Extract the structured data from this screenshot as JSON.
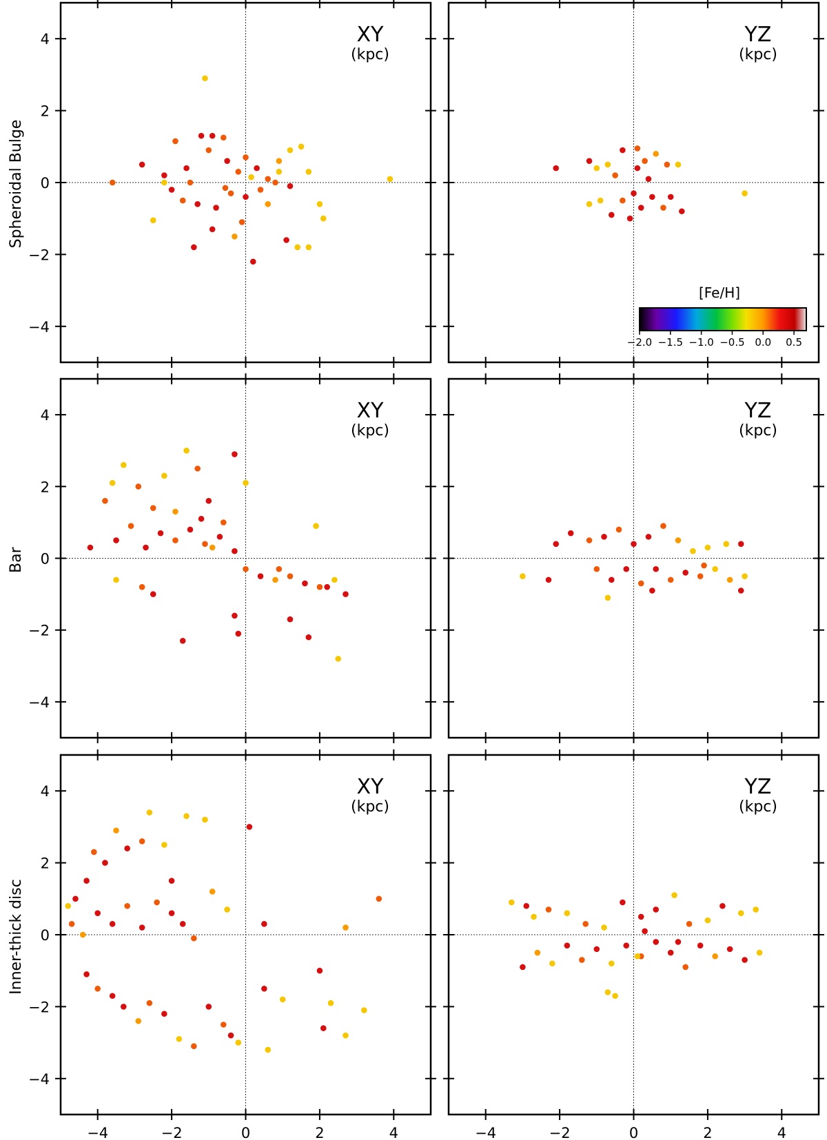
{
  "chart_data": [
    {
      "type": "scatter",
      "panel": "row1-xy",
      "row_label": "Spheroidal Bulge",
      "title": "XY",
      "unit": "(kpc)",
      "xlim": [
        -5,
        5
      ],
      "ylim": [
        -5,
        5
      ],
      "xticks": [
        -4,
        -2,
        0,
        2,
        4
      ],
      "yticks": [
        4,
        2,
        0,
        -2,
        -4
      ],
      "color_by": "[Fe/H]",
      "points": [
        [
          -3.6,
          0.0,
          0.3
        ],
        [
          -2.8,
          0.5,
          0.45
        ],
        [
          -2.2,
          0.2,
          0.45
        ],
        [
          -1.9,
          1.15,
          0.4
        ],
        [
          -1.6,
          0.4,
          0.45
        ],
        [
          -1.5,
          0.0,
          0.3
        ],
        [
          -1.2,
          1.3,
          0.5
        ],
        [
          -1.0,
          0.9,
          0.4
        ],
        [
          -0.9,
          1.3,
          0.45
        ],
        [
          -0.6,
          1.25,
          0.3
        ],
        [
          -0.5,
          0.6,
          0.45
        ],
        [
          -0.2,
          0.3,
          0.35
        ],
        [
          0.0,
          0.7,
          0.3
        ],
        [
          0.3,
          0.4,
          0.45
        ],
        [
          0.6,
          0.1,
          0.35
        ],
        [
          0.9,
          0.6,
          0.15
        ],
        [
          1.2,
          0.9,
          0.05
        ],
        [
          1.5,
          1.0,
          0.1
        ],
        [
          1.7,
          0.3,
          0.05
        ],
        [
          -2.0,
          -0.2,
          0.45
        ],
        [
          -1.7,
          -0.5,
          0.4
        ],
        [
          -1.3,
          -0.6,
          0.45
        ],
        [
          -0.8,
          -0.7,
          0.5
        ],
        [
          -0.4,
          -0.3,
          0.35
        ],
        [
          0.0,
          -0.4,
          0.5
        ],
        [
          0.4,
          -0.2,
          0.3
        ],
        [
          0.8,
          0.0,
          0.4
        ],
        [
          1.2,
          -0.1,
          0.45
        ],
        [
          -1.4,
          -1.8,
          0.45
        ],
        [
          -0.9,
          -1.3,
          0.5
        ],
        [
          -0.3,
          -1.5,
          0.2
        ],
        [
          0.2,
          -2.2,
          0.45
        ],
        [
          1.1,
          -1.6,
          0.45
        ],
        [
          1.4,
          -1.8,
          0.05
        ],
        [
          1.7,
          -1.8,
          0.1
        ],
        [
          2.1,
          -1.0,
          0.0
        ],
        [
          2.0,
          -0.6,
          0.1
        ],
        [
          -2.5,
          -1.05,
          0.05
        ],
        [
          -0.55,
          -0.15,
          0.4
        ],
        [
          0.15,
          0.15,
          0.1
        ],
        [
          -1.1,
          2.9,
          0.0
        ],
        [
          3.9,
          0.1,
          0.0
        ],
        [
          0.6,
          -0.6,
          0.2
        ],
        [
          -2.2,
          0.0,
          0.1
        ],
        [
          0.9,
          0.3,
          0.0
        ],
        [
          -0.1,
          -1.1,
          0.35
        ]
      ]
    },
    {
      "type": "scatter",
      "panel": "row1-yz",
      "title": "YZ",
      "unit": "(kpc)",
      "xlim": [
        -5,
        5
      ],
      "ylim": [
        -5,
        5
      ],
      "xticks": [
        -4,
        -2,
        0,
        2,
        4
      ],
      "yticks": [
        4,
        2,
        0,
        -2,
        -4
      ],
      "color_by": "[Fe/H]",
      "points": [
        [
          -2.1,
          0.4,
          0.45
        ],
        [
          -1.2,
          0.6,
          0.45
        ],
        [
          -1.0,
          0.4,
          0.1
        ],
        [
          -0.7,
          0.5,
          0.05
        ],
        [
          -0.3,
          0.9,
          0.45
        ],
        [
          0.1,
          0.4,
          0.5
        ],
        [
          0.3,
          0.6,
          0.35
        ],
        [
          0.6,
          0.8,
          0.15
        ],
        [
          0.9,
          0.5,
          0.3
        ],
        [
          1.2,
          0.5,
          0.1
        ],
        [
          -1.2,
          -0.6,
          0.1
        ],
        [
          -0.9,
          -0.5,
          0.05
        ],
        [
          -0.6,
          -0.9,
          0.45
        ],
        [
          -0.3,
          -0.5,
          0.35
        ],
        [
          0.0,
          -0.3,
          0.45
        ],
        [
          0.2,
          -0.7,
          0.5
        ],
        [
          0.5,
          -0.4,
          0.45
        ],
        [
          0.8,
          -0.7,
          0.4
        ],
        [
          1.0,
          -0.4,
          0.45
        ],
        [
          1.3,
          -0.8,
          0.45
        ],
        [
          3.0,
          -0.3,
          0.0
        ],
        [
          -0.1,
          -1.0,
          0.45
        ],
        [
          0.1,
          0.95,
          0.4
        ],
        [
          -0.5,
          0.2,
          0.3
        ],
        [
          0.4,
          0.1,
          0.45
        ]
      ]
    },
    {
      "type": "scatter",
      "panel": "row2-xy",
      "row_label": "Bar",
      "title": "XY",
      "unit": "(kpc)",
      "xlim": [
        -5,
        5
      ],
      "ylim": [
        -5,
        5
      ],
      "xticks": [
        -4,
        -2,
        0,
        2,
        4
      ],
      "yticks": [
        4,
        2,
        0,
        -2,
        -4
      ],
      "color_by": "[Fe/H]",
      "points": [
        [
          -4.2,
          0.3,
          0.45
        ],
        [
          -3.8,
          1.6,
          0.4
        ],
        [
          -3.6,
          2.1,
          0.05
        ],
        [
          -3.3,
          2.6,
          0.1
        ],
        [
          -2.9,
          2.0,
          0.3
        ],
        [
          -2.5,
          1.4,
          0.4
        ],
        [
          -2.2,
          2.3,
          0.05
        ],
        [
          -1.9,
          1.3,
          0.2
        ],
        [
          -1.6,
          3.0,
          0.1
        ],
        [
          -1.3,
          2.5,
          0.3
        ],
        [
          -1.0,
          1.6,
          0.45
        ],
        [
          -0.6,
          1.0,
          0.35
        ],
        [
          -0.3,
          2.9,
          0.5
        ],
        [
          0.0,
          2.1,
          0.1
        ],
        [
          -3.5,
          0.5,
          0.45
        ],
        [
          -3.1,
          0.9,
          0.4
        ],
        [
          -2.7,
          0.3,
          0.45
        ],
        [
          -2.3,
          0.7,
          0.5
        ],
        [
          -1.9,
          0.5,
          0.35
        ],
        [
          -1.5,
          0.8,
          0.45
        ],
        [
          -1.1,
          0.4,
          0.3
        ],
        [
          -0.7,
          0.6,
          0.45
        ],
        [
          -0.3,
          0.2,
          0.5
        ],
        [
          0.0,
          -0.3,
          0.35
        ],
        [
          0.4,
          -0.5,
          0.45
        ],
        [
          0.8,
          -0.6,
          0.2
        ],
        [
          1.2,
          -0.5,
          0.35
        ],
        [
          1.6,
          -0.7,
          0.45
        ],
        [
          2.0,
          -0.8,
          0.3
        ],
        [
          2.4,
          -0.6,
          0.1
        ],
        [
          2.7,
          -1.0,
          0.5
        ],
        [
          -2.8,
          -0.8,
          0.3
        ],
        [
          -2.5,
          -1.0,
          0.45
        ],
        [
          -1.7,
          -2.3,
          0.5
        ],
        [
          -0.3,
          -1.6,
          0.45
        ],
        [
          -0.2,
          -2.1,
          0.45
        ],
        [
          1.2,
          -1.7,
          0.5
        ],
        [
          1.7,
          -2.2,
          0.45
        ],
        [
          2.5,
          -2.8,
          0.0
        ],
        [
          1.9,
          0.9,
          0.1
        ],
        [
          -3.5,
          -0.6,
          0.05
        ],
        [
          -1.2,
          1.1,
          0.5
        ],
        [
          -0.9,
          0.3,
          0.2
        ],
        [
          0.9,
          -0.3,
          0.4
        ],
        [
          2.2,
          -0.8,
          0.45
        ]
      ]
    },
    {
      "type": "scatter",
      "panel": "row2-yz",
      "title": "YZ",
      "unit": "(kpc)",
      "xlim": [
        -5,
        5
      ],
      "ylim": [
        -5,
        5
      ],
      "xticks": [
        -4,
        -2,
        0,
        2,
        4
      ],
      "yticks": [
        4,
        2,
        0,
        -2,
        -4
      ],
      "color_by": "[Fe/H]",
      "points": [
        [
          -3.0,
          -0.5,
          0.05
        ],
        [
          -2.3,
          -0.6,
          0.45
        ],
        [
          -2.1,
          0.4,
          0.45
        ],
        [
          -1.7,
          0.7,
          0.45
        ],
        [
          -1.2,
          0.5,
          0.3
        ],
        [
          -0.8,
          0.6,
          0.45
        ],
        [
          -0.4,
          0.8,
          0.35
        ],
        [
          0.0,
          0.4,
          0.5
        ],
        [
          0.4,
          0.6,
          0.45
        ],
        [
          0.8,
          0.9,
          0.3
        ],
        [
          1.2,
          0.5,
          0.2
        ],
        [
          1.6,
          0.2,
          0.1
        ],
        [
          2.0,
          0.3,
          0.05
        ],
        [
          2.5,
          0.4,
          0.05
        ],
        [
          2.9,
          0.4,
          0.45
        ],
        [
          -1.0,
          -0.3,
          0.35
        ],
        [
          -0.6,
          -0.6,
          0.45
        ],
        [
          -0.2,
          -0.3,
          0.5
        ],
        [
          0.2,
          -0.7,
          0.4
        ],
        [
          0.6,
          -0.3,
          0.45
        ],
        [
          1.0,
          -0.6,
          0.3
        ],
        [
          1.4,
          -0.4,
          0.45
        ],
        [
          1.8,
          -0.5,
          0.35
        ],
        [
          2.2,
          -0.3,
          0.1
        ],
        [
          2.6,
          -0.6,
          0.2
        ],
        [
          2.9,
          -0.9,
          0.45
        ],
        [
          3.0,
          -0.5,
          0.0
        ],
        [
          -0.7,
          -1.1,
          0.05
        ],
        [
          0.5,
          -0.9,
          0.45
        ],
        [
          1.9,
          -0.2,
          0.3
        ]
      ]
    },
    {
      "type": "scatter",
      "panel": "row3-xy",
      "row_label": "Inner-thick disc",
      "title": "XY",
      "unit": "(kpc)",
      "xlim": [
        -5,
        5
      ],
      "ylim": [
        -5,
        5
      ],
      "xticks": [
        -4,
        -2,
        0,
        2,
        4
      ],
      "yticks": [
        4,
        2,
        0,
        -2,
        -4
      ],
      "color_by": "[Fe/H]",
      "points": [
        [
          -4.8,
          0.8,
          0.1
        ],
        [
          -4.6,
          1.0,
          0.45
        ],
        [
          -4.3,
          1.5,
          0.45
        ],
        [
          -4.1,
          2.3,
          0.3
        ],
        [
          -3.8,
          2.0,
          0.45
        ],
        [
          -3.5,
          2.9,
          0.2
        ],
        [
          -3.2,
          2.4,
          0.45
        ],
        [
          -2.8,
          2.6,
          0.35
        ],
        [
          -2.6,
          3.4,
          0.0
        ],
        [
          -2.2,
          2.5,
          0.05
        ],
        [
          -1.6,
          3.3,
          0.05
        ],
        [
          -1.1,
          3.2,
          0.1
        ],
        [
          -4.7,
          0.3,
          0.3
        ],
        [
          -4.4,
          0.0,
          0.2
        ],
        [
          -4.0,
          0.6,
          0.45
        ],
        [
          -3.6,
          0.3,
          0.5
        ],
        [
          -3.2,
          0.8,
          0.35
        ],
        [
          -2.8,
          0.2,
          0.45
        ],
        [
          -2.4,
          0.9,
          0.3
        ],
        [
          -2.0,
          0.6,
          0.45
        ],
        [
          -1.7,
          0.3,
          0.45
        ],
        [
          -1.4,
          -0.1,
          0.3
        ],
        [
          -4.3,
          -1.1,
          0.45
        ],
        [
          -4.0,
          -1.5,
          0.3
        ],
        [
          -3.6,
          -1.7,
          0.45
        ],
        [
          -3.3,
          -2.0,
          0.45
        ],
        [
          -2.9,
          -2.4,
          0.2
        ],
        [
          -2.6,
          -1.9,
          0.3
        ],
        [
          -2.2,
          -2.2,
          0.45
        ],
        [
          -1.8,
          -2.9,
          0.1
        ],
        [
          -1.4,
          -3.1,
          0.3
        ],
        [
          -1.0,
          -2.0,
          0.45
        ],
        [
          -0.6,
          -2.5,
          0.3
        ],
        [
          -0.4,
          -2.8,
          0.45
        ],
        [
          -0.2,
          -3.0,
          0.1
        ],
        [
          0.1,
          3.0,
          0.45
        ],
        [
          0.5,
          0.3,
          0.5
        ],
        [
          0.5,
          -1.5,
          0.45
        ],
        [
          0.6,
          -3.2,
          0.05
        ],
        [
          1.0,
          -1.8,
          0.0
        ],
        [
          2.0,
          -1.0,
          0.45
        ],
        [
          2.1,
          -2.6,
          0.45
        ],
        [
          2.3,
          -1.9,
          0.0
        ],
        [
          2.7,
          -2.8,
          0.1
        ],
        [
          2.7,
          0.2,
          0.2
        ],
        [
          3.2,
          -2.1,
          0.05
        ],
        [
          3.6,
          1.0,
          0.3
        ],
        [
          -0.5,
          0.7,
          0.05
        ],
        [
          -0.9,
          1.2,
          0.2
        ],
        [
          -2.0,
          1.5,
          0.45
        ]
      ]
    },
    {
      "type": "scatter",
      "panel": "row3-yz",
      "title": "YZ",
      "unit": "(kpc)",
      "xlim": [
        -5,
        5
      ],
      "ylim": [
        -5,
        5
      ],
      "xticks": [
        -4,
        -2,
        0,
        2,
        4
      ],
      "yticks": [
        4,
        2,
        0,
        -2,
        -4
      ],
      "color_by": "[Fe/H]",
      "points": [
        [
          -3.3,
          0.9,
          0.05
        ],
        [
          -2.9,
          0.8,
          0.45
        ],
        [
          -2.7,
          0.5,
          0.1
        ],
        [
          -2.3,
          0.7,
          0.3
        ],
        [
          -1.8,
          0.6,
          0.05
        ],
        [
          -1.3,
          0.3,
          0.3
        ],
        [
          -0.8,
          0.2,
          0.1
        ],
        [
          -0.3,
          0.9,
          0.45
        ],
        [
          0.2,
          0.5,
          0.5
        ],
        [
          0.6,
          0.7,
          0.45
        ],
        [
          1.1,
          1.1,
          0.05
        ],
        [
          1.5,
          0.3,
          0.3
        ],
        [
          2.0,
          0.4,
          0.1
        ],
        [
          2.4,
          0.8,
          0.45
        ],
        [
          2.9,
          0.6,
          0.1
        ],
        [
          3.3,
          0.7,
          0.0
        ],
        [
          -3.0,
          -0.9,
          0.45
        ],
        [
          -2.6,
          -0.5,
          0.2
        ],
        [
          -2.2,
          -0.8,
          0.05
        ],
        [
          -1.8,
          -0.3,
          0.45
        ],
        [
          -1.4,
          -0.7,
          0.3
        ],
        [
          -1.0,
          -0.4,
          0.45
        ],
        [
          -0.6,
          -0.8,
          0.05
        ],
        [
          -0.2,
          -0.3,
          0.45
        ],
        [
          0.2,
          -0.6,
          0.3
        ],
        [
          0.6,
          -0.2,
          0.45
        ],
        [
          1.0,
          -0.5,
          0.45
        ],
        [
          1.4,
          -0.9,
          0.3
        ],
        [
          1.8,
          -0.3,
          0.45
        ],
        [
          2.2,
          -0.6,
          0.2
        ],
        [
          2.6,
          -0.4,
          0.45
        ],
        [
          3.0,
          -0.7,
          0.45
        ],
        [
          3.4,
          -0.5,
          0.05
        ],
        [
          -0.7,
          -1.6,
          0.05
        ],
        [
          -0.5,
          -1.7,
          0.1
        ],
        [
          0.1,
          -0.6,
          0.05
        ],
        [
          0.3,
          0.1,
          0.45
        ],
        [
          1.2,
          -0.2,
          0.45
        ]
      ]
    }
  ],
  "colorbar": {
    "label": "[Fe/H]",
    "tick_labels": [
      "−2.0",
      "−1.5",
      "−1.0",
      "−0.5",
      "0.0",
      "0.5"
    ],
    "tick_values": [
      -2.0,
      -1.5,
      -1.0,
      -0.5,
      0.0,
      0.5
    ],
    "range": [
      -2.0,
      0.7
    ]
  },
  "colors": {
    "metal_rich": "#dd1010",
    "mid": "#f26a0a",
    "metal_poor_visible": "#f5c000",
    "zero_line": "#333333"
  }
}
